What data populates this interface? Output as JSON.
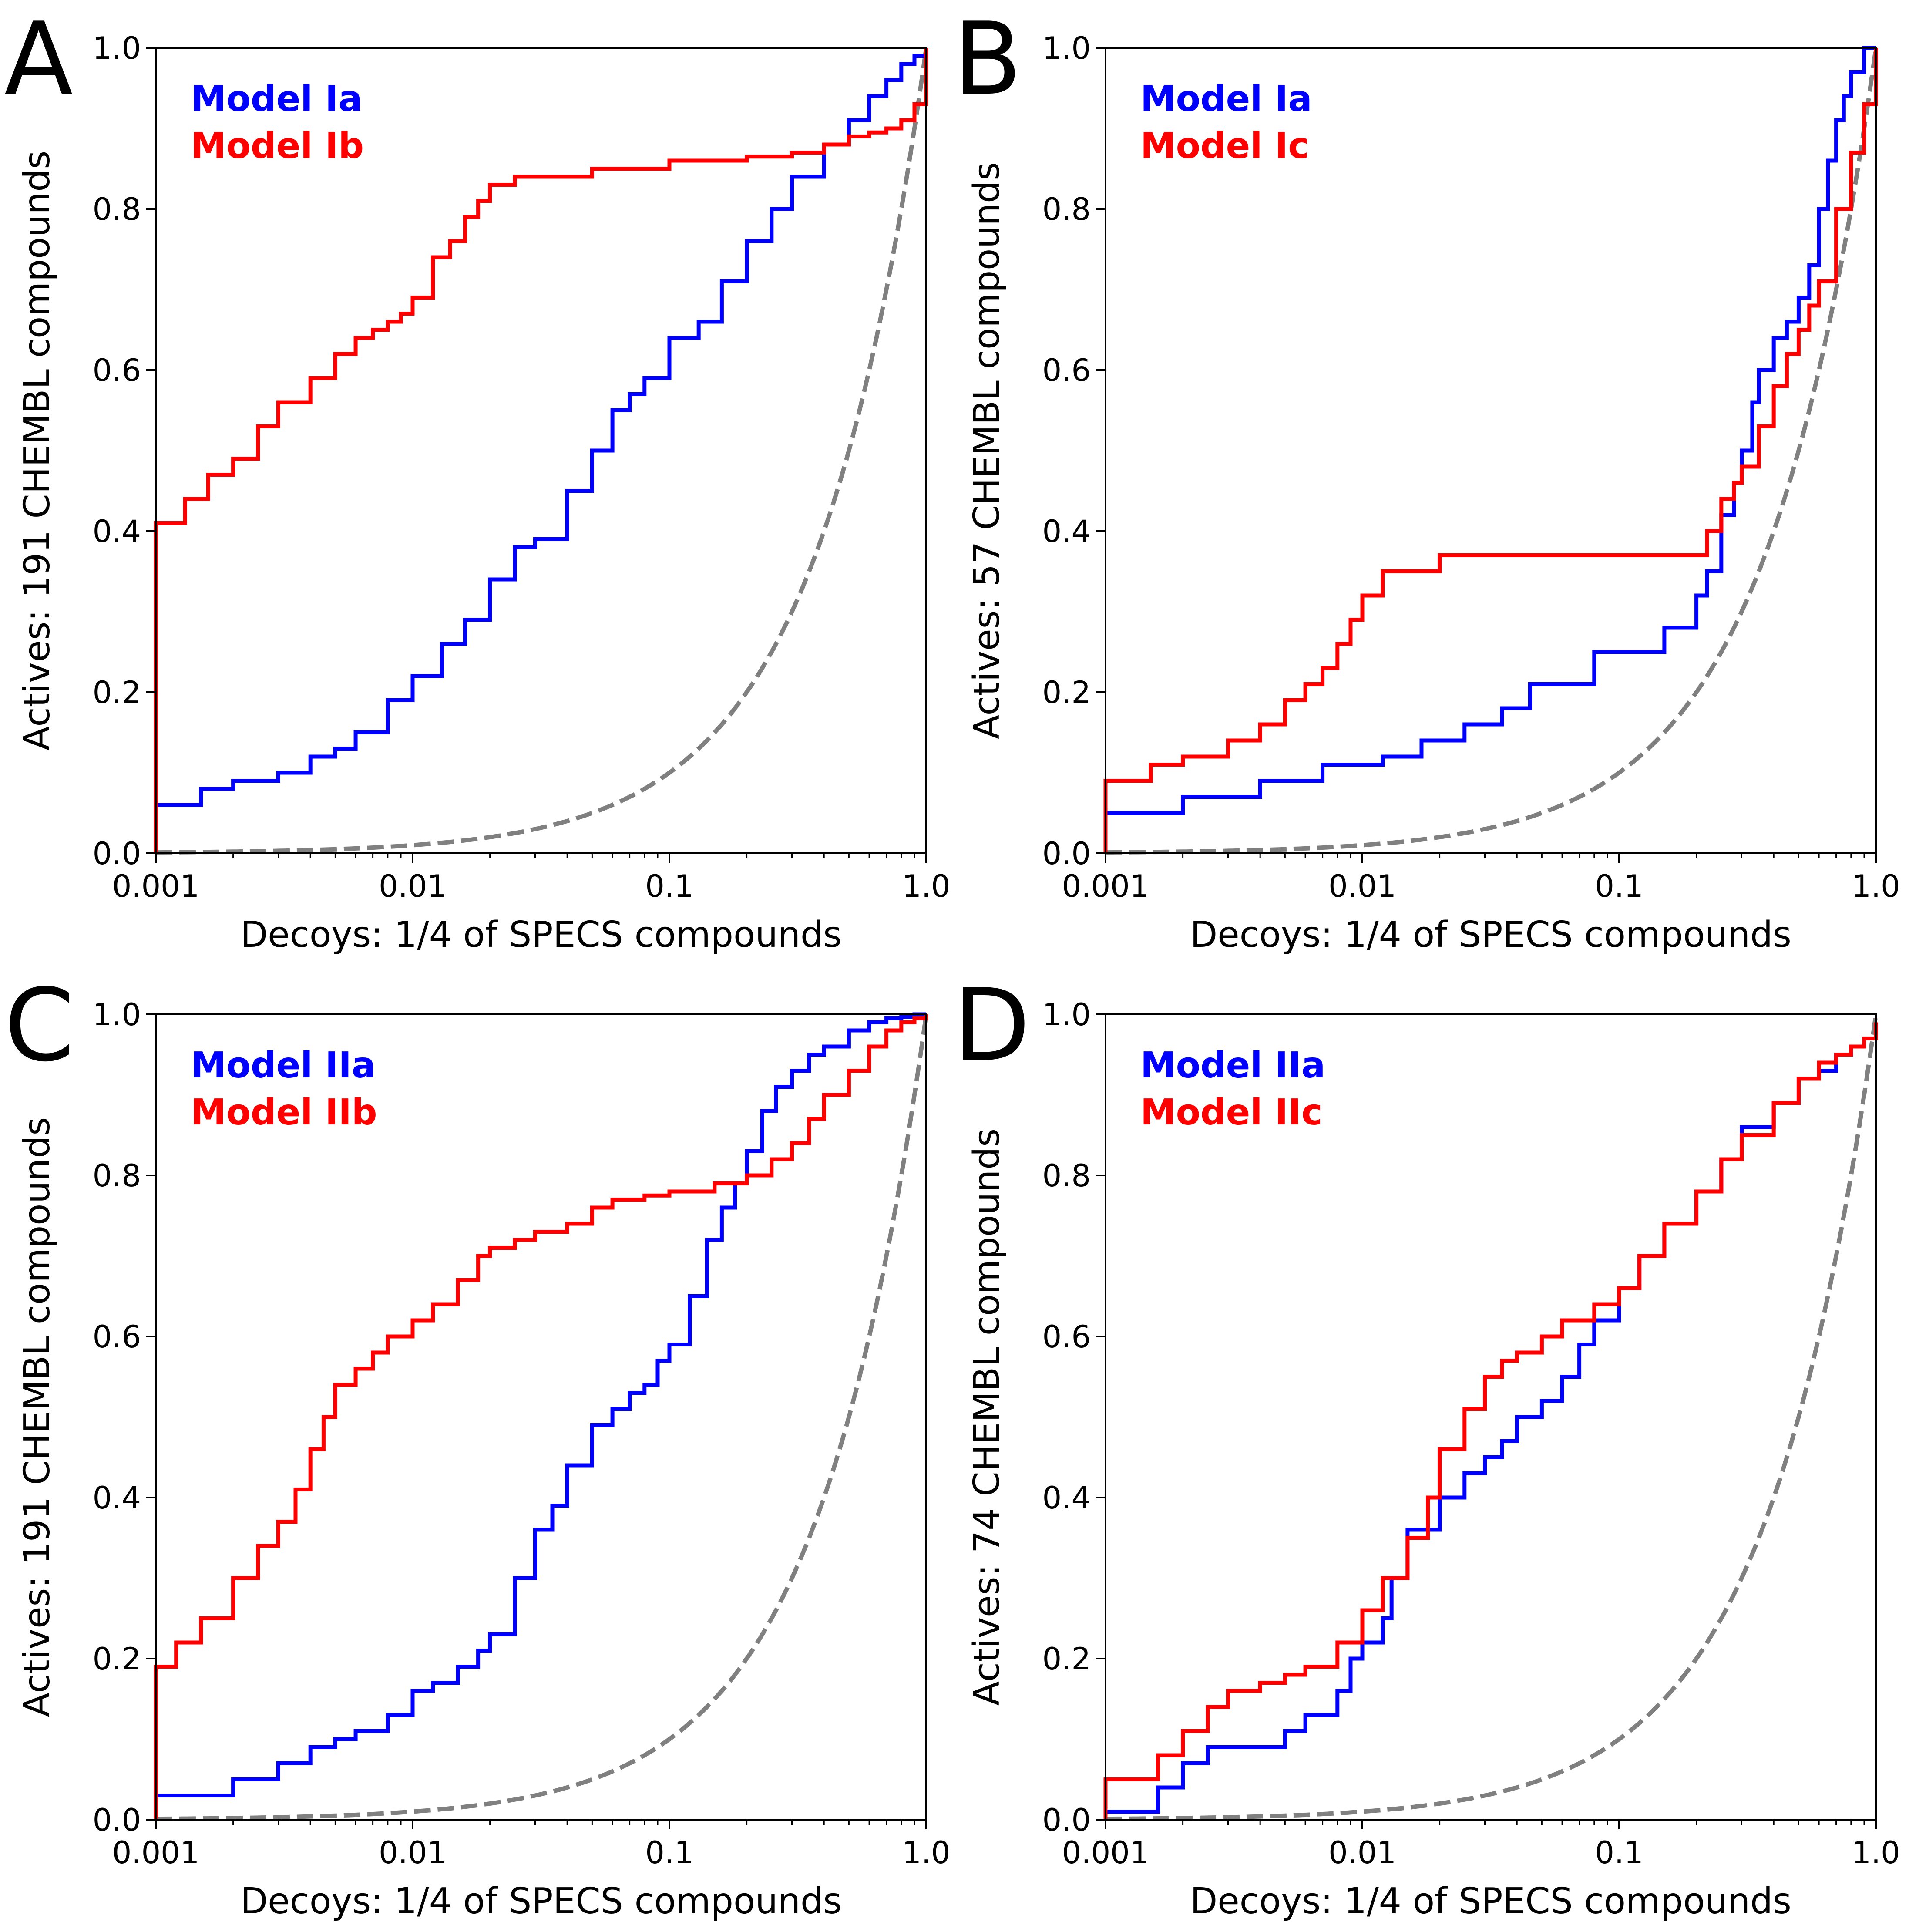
{
  "figure": {
    "colors": {
      "model_a": "#0000ff",
      "model_b": "#ff0000",
      "random": "#808080",
      "axes": "#000000"
    }
  },
  "chart_data": [
    {
      "panel": "A",
      "type": "line",
      "xscale": "log",
      "xlim": [
        0.001,
        1.0
      ],
      "ylim": [
        0.0,
        1.0
      ],
      "xticks": [
        "0.001",
        "0.01",
        "0.1",
        "1.0"
      ],
      "yticks": [
        "0.0",
        "0.2",
        "0.4",
        "0.6",
        "0.8",
        "1.0"
      ],
      "xlabel": "Decoys: 1/4 of SPECS compounds",
      "ylabel": "Actives: 191 CHEMBL compounds",
      "legend_position": "top-left",
      "series": [
        {
          "name": "Model Ia",
          "color": "#0000ff",
          "x": [
            0.001,
            0.0015,
            0.002,
            0.003,
            0.004,
            0.005,
            0.006,
            0.008,
            0.01,
            0.013,
            0.016,
            0.02,
            0.025,
            0.03,
            0.04,
            0.05,
            0.06,
            0.07,
            0.08,
            0.1,
            0.13,
            0.16,
            0.2,
            0.25,
            0.3,
            0.4,
            0.5,
            0.6,
            0.7,
            0.8,
            0.9,
            1.0
          ],
          "y": [
            0.06,
            0.08,
            0.09,
            0.1,
            0.12,
            0.13,
            0.15,
            0.19,
            0.22,
            0.26,
            0.29,
            0.34,
            0.38,
            0.39,
            0.45,
            0.5,
            0.55,
            0.57,
            0.59,
            0.64,
            0.66,
            0.71,
            0.76,
            0.8,
            0.84,
            0.88,
            0.91,
            0.94,
            0.96,
            0.98,
            0.99,
            1.0
          ]
        },
        {
          "name": "Model Ib",
          "color": "#ff0000",
          "x": [
            0.001,
            0.0013,
            0.0016,
            0.002,
            0.0025,
            0.003,
            0.004,
            0.005,
            0.006,
            0.007,
            0.008,
            0.009,
            0.01,
            0.012,
            0.014,
            0.016,
            0.018,
            0.02,
            0.025,
            0.03,
            0.05,
            0.1,
            0.2,
            0.3,
            0.4,
            0.5,
            0.6,
            0.7,
            0.8,
            0.9,
            1.0
          ],
          "y": [
            0.41,
            0.44,
            0.47,
            0.49,
            0.53,
            0.56,
            0.59,
            0.62,
            0.64,
            0.65,
            0.66,
            0.67,
            0.69,
            0.74,
            0.76,
            0.79,
            0.81,
            0.83,
            0.84,
            0.84,
            0.85,
            0.86,
            0.865,
            0.87,
            0.88,
            0.89,
            0.895,
            0.9,
            0.91,
            0.93,
            1.0
          ]
        }
      ]
    },
    {
      "panel": "B",
      "type": "line",
      "xscale": "log",
      "xlim": [
        0.001,
        1.0
      ],
      "ylim": [
        0.0,
        1.0
      ],
      "xticks": [
        "0.001",
        "0.01",
        "0.1",
        "1.0"
      ],
      "yticks": [
        "0.0",
        "0.2",
        "0.4",
        "0.6",
        "0.8",
        "1.0"
      ],
      "xlabel": "Decoys: 1/4 of SPECS compounds",
      "ylabel": "Actives: 57 CHEMBL compounds",
      "legend_position": "top-left",
      "series": [
        {
          "name": "Model Ia",
          "color": "#0000ff",
          "x": [
            0.001,
            0.002,
            0.004,
            0.007,
            0.012,
            0.017,
            0.025,
            0.035,
            0.045,
            0.08,
            0.15,
            0.2,
            0.22,
            0.25,
            0.28,
            0.3,
            0.33,
            0.35,
            0.4,
            0.45,
            0.5,
            0.55,
            0.6,
            0.65,
            0.7,
            0.75,
            0.8,
            0.9,
            1.0
          ],
          "y": [
            0.05,
            0.07,
            0.09,
            0.11,
            0.12,
            0.14,
            0.16,
            0.18,
            0.21,
            0.25,
            0.28,
            0.32,
            0.35,
            0.42,
            0.46,
            0.5,
            0.56,
            0.6,
            0.64,
            0.66,
            0.69,
            0.73,
            0.8,
            0.86,
            0.91,
            0.94,
            0.97,
            1.0,
            1.0
          ]
        },
        {
          "name": "Model Ic",
          "color": "#ff0000",
          "x": [
            0.001,
            0.0015,
            0.002,
            0.003,
            0.004,
            0.005,
            0.006,
            0.007,
            0.008,
            0.009,
            0.01,
            0.012,
            0.02,
            0.05,
            0.1,
            0.2,
            0.22,
            0.25,
            0.28,
            0.3,
            0.35,
            0.4,
            0.45,
            0.5,
            0.55,
            0.6,
            0.7,
            0.8,
            0.9,
            1.0
          ],
          "y": [
            0.09,
            0.11,
            0.12,
            0.14,
            0.16,
            0.19,
            0.21,
            0.23,
            0.26,
            0.29,
            0.32,
            0.35,
            0.37,
            0.37,
            0.37,
            0.37,
            0.4,
            0.44,
            0.46,
            0.48,
            0.53,
            0.58,
            0.62,
            0.65,
            0.68,
            0.71,
            0.8,
            0.87,
            0.93,
            1.0
          ]
        }
      ]
    },
    {
      "panel": "C",
      "type": "line",
      "xscale": "log",
      "xlim": [
        0.001,
        1.0
      ],
      "ylim": [
        0.0,
        1.0
      ],
      "xticks": [
        "0.001",
        "0.01",
        "0.1",
        "1.0"
      ],
      "yticks": [
        "0.0",
        "0.2",
        "0.4",
        "0.6",
        "0.8",
        "1.0"
      ],
      "xlabel": "Decoys: 1/4 of SPECS compounds",
      "ylabel": "Actives: 191 CHEMBL compounds",
      "legend_position": "top-left",
      "series": [
        {
          "name": "Model IIa",
          "color": "#0000ff",
          "x": [
            0.001,
            0.002,
            0.003,
            0.004,
            0.005,
            0.006,
            0.008,
            0.01,
            0.012,
            0.015,
            0.018,
            0.02,
            0.025,
            0.03,
            0.035,
            0.04,
            0.05,
            0.06,
            0.07,
            0.08,
            0.09,
            0.1,
            0.12,
            0.14,
            0.16,
            0.18,
            0.2,
            0.23,
            0.26,
            0.3,
            0.35,
            0.4,
            0.5,
            0.6,
            0.7,
            0.8,
            0.9,
            1.0
          ],
          "y": [
            0.03,
            0.05,
            0.07,
            0.09,
            0.1,
            0.11,
            0.13,
            0.16,
            0.17,
            0.19,
            0.21,
            0.23,
            0.3,
            0.36,
            0.39,
            0.44,
            0.49,
            0.51,
            0.53,
            0.54,
            0.57,
            0.59,
            0.65,
            0.72,
            0.76,
            0.79,
            0.83,
            0.88,
            0.91,
            0.93,
            0.95,
            0.96,
            0.98,
            0.99,
            0.995,
            0.997,
            1.0,
            1.0
          ]
        },
        {
          "name": "Model IIb",
          "color": "#ff0000",
          "x": [
            0.001,
            0.0012,
            0.0015,
            0.002,
            0.0025,
            0.003,
            0.0035,
            0.004,
            0.0045,
            0.005,
            0.006,
            0.007,
            0.008,
            0.01,
            0.012,
            0.015,
            0.018,
            0.02,
            0.025,
            0.03,
            0.04,
            0.05,
            0.06,
            0.08,
            0.1,
            0.15,
            0.2,
            0.25,
            0.3,
            0.35,
            0.4,
            0.5,
            0.6,
            0.7,
            0.8,
            0.9,
            1.0
          ],
          "y": [
            0.19,
            0.22,
            0.25,
            0.3,
            0.34,
            0.37,
            0.41,
            0.46,
            0.5,
            0.54,
            0.56,
            0.58,
            0.6,
            0.62,
            0.64,
            0.67,
            0.7,
            0.71,
            0.72,
            0.73,
            0.74,
            0.76,
            0.77,
            0.775,
            0.78,
            0.79,
            0.8,
            0.82,
            0.84,
            0.87,
            0.9,
            0.93,
            0.96,
            0.98,
            0.99,
            0.995,
            1.0
          ]
        }
      ]
    },
    {
      "panel": "D",
      "type": "line",
      "xscale": "log",
      "xlim": [
        0.001,
        1.0
      ],
      "ylim": [
        0.0,
        1.0
      ],
      "xticks": [
        "0.001",
        "0.01",
        "0.1",
        "1.0"
      ],
      "yticks": [
        "0.0",
        "0.2",
        "0.4",
        "0.6",
        "0.8",
        "1.0"
      ],
      "xlabel": "Decoys: 1/4 of SPECS compounds",
      "ylabel": "Actives: 74 CHEMBL compounds",
      "legend_position": "top-left",
      "series": [
        {
          "name": "Model IIa",
          "color": "#0000ff",
          "x": [
            0.001,
            0.0016,
            0.002,
            0.0025,
            0.003,
            0.005,
            0.006,
            0.008,
            0.009,
            0.01,
            0.012,
            0.013,
            0.015,
            0.02,
            0.025,
            0.03,
            0.035,
            0.04,
            0.05,
            0.06,
            0.07,
            0.08,
            0.1,
            0.12,
            0.15,
            0.2,
            0.25,
            0.3,
            0.4,
            0.5,
            0.6,
            0.7,
            0.8,
            0.9,
            1.0
          ],
          "y": [
            0.01,
            0.04,
            0.07,
            0.09,
            0.09,
            0.11,
            0.13,
            0.16,
            0.2,
            0.22,
            0.25,
            0.3,
            0.36,
            0.4,
            0.43,
            0.45,
            0.47,
            0.5,
            0.52,
            0.55,
            0.59,
            0.62,
            0.66,
            0.7,
            0.74,
            0.78,
            0.82,
            0.86,
            0.89,
            0.92,
            0.93,
            0.95,
            0.96,
            0.97,
            0.99
          ]
        },
        {
          "name": "Model IIc",
          "color": "#ff0000",
          "x": [
            0.001,
            0.0016,
            0.002,
            0.0025,
            0.003,
            0.004,
            0.005,
            0.006,
            0.008,
            0.01,
            0.012,
            0.015,
            0.018,
            0.02,
            0.025,
            0.03,
            0.035,
            0.04,
            0.05,
            0.06,
            0.07,
            0.08,
            0.1,
            0.12,
            0.15,
            0.2,
            0.25,
            0.3,
            0.4,
            0.5,
            0.6,
            0.7,
            0.8,
            0.9,
            1.0
          ],
          "y": [
            0.05,
            0.08,
            0.11,
            0.14,
            0.16,
            0.17,
            0.18,
            0.19,
            0.22,
            0.26,
            0.3,
            0.35,
            0.4,
            0.46,
            0.51,
            0.55,
            0.57,
            0.58,
            0.6,
            0.62,
            0.62,
            0.64,
            0.66,
            0.7,
            0.74,
            0.78,
            0.82,
            0.85,
            0.89,
            0.92,
            0.94,
            0.95,
            0.96,
            0.97,
            0.99
          ]
        }
      ]
    }
  ]
}
